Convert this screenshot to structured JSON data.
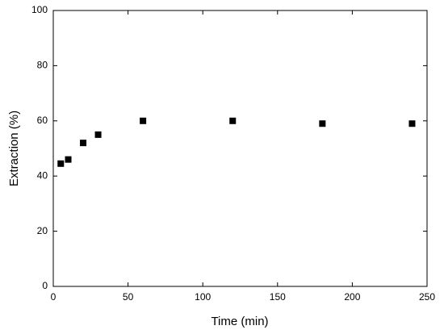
{
  "chart_data": {
    "type": "scatter",
    "x_label": "Time (min)",
    "y_label": "Extraction (%)",
    "series": [
      {
        "name": "Extraction",
        "color": "#000000",
        "x": [
          5,
          10,
          20,
          30,
          60,
          120,
          180,
          240
        ],
        "values": [
          44.5,
          46,
          52,
          55,
          60,
          60,
          59,
          59
        ]
      }
    ],
    "xlim": [
      0,
      250
    ],
    "xticks": [
      0,
      50,
      100,
      150,
      200,
      250
    ],
    "ylim": [
      0,
      100
    ],
    "yticks": [
      0,
      20,
      40,
      60,
      80,
      100
    ],
    "grid": false
  }
}
